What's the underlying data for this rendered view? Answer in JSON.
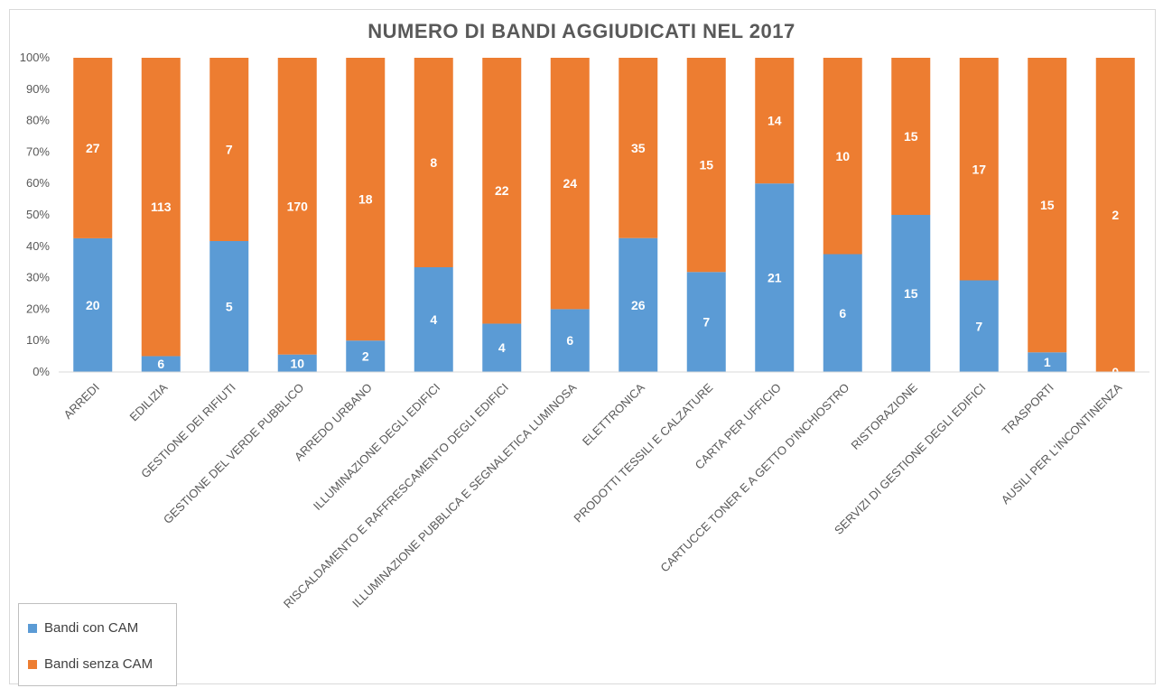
{
  "chart_data": {
    "type": "bar",
    "stacked": "percent",
    "title": "NUMERO DI BANDI AGGIUDICATI NEL 2017",
    "categories": [
      "ARREDI",
      "EDILIZIA",
      "GESTIONE DEI RIFIUTI",
      "GESTIONE DEL VERDE PUBBLICO",
      "ARREDO URBANO",
      "ILLUMINAZIONE DEGLI EDIFICI",
      "RISCALDAMENTO  E  RAFFRESCAMENTO  DEGLI  EDIFICI",
      "ILLUMINAZIONE PUBBLICA E SEGNALETICA LUMINOSA",
      "ELETTRONICA",
      "PRODOTTI TESSILI E CALZATURE",
      "CARTA PER UFFICIO",
      "CARTUCCE  TONER E A GETTO D'INCHIOSTRO",
      "RISTORAZIONE",
      "SERVIZI DI GESTIONE DEGLI EDIFICI",
      "TRASPORTI",
      "AUSILI PER L'INCONTINENZA"
    ],
    "series": [
      {
        "name": "Bandi con CAM",
        "color": "#5B9BD5",
        "values": [
          20,
          6,
          5,
          10,
          2,
          4,
          4,
          6,
          26,
          7,
          21,
          6,
          15,
          7,
          1,
          0
        ]
      },
      {
        "name": "Bandi senza CAM",
        "color": "#ED7D31",
        "values": [
          27,
          113,
          7,
          170,
          18,
          8,
          22,
          24,
          35,
          15,
          14,
          10,
          15,
          17,
          15,
          2
        ]
      }
    ],
    "yticks": [
      "0%",
      "10%",
      "20%",
      "30%",
      "40%",
      "50%",
      "60%",
      "70%",
      "80%",
      "90%",
      "100%"
    ],
    "ylim": [
      0,
      100
    ],
    "legend_position": "bottom-left",
    "grid": false
  }
}
